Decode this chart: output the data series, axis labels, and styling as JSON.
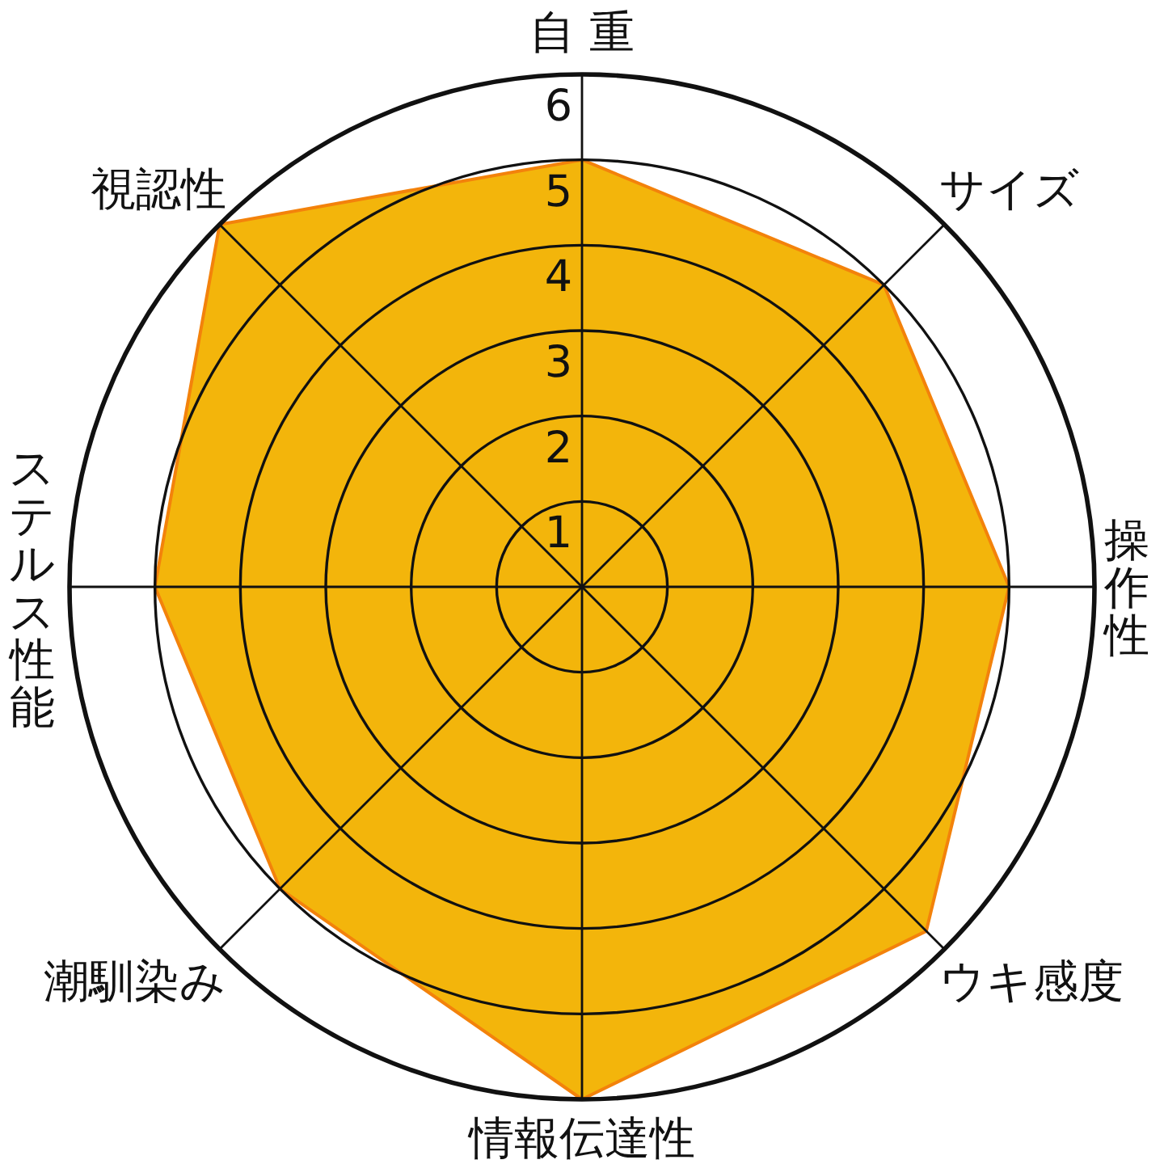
{
  "chart_data": {
    "type": "radar",
    "categories": [
      "自 重",
      "サイズ",
      "操作性",
      "ウキ感度",
      "情報伝達性",
      "潮馴染み",
      "ステルス性能",
      "視認性"
    ],
    "series": [
      {
        "color": "#f3b50b",
        "values": [
          5,
          5,
          5,
          5.7,
          6,
          5,
          5,
          6
        ]
      }
    ],
    "ylim": [
      0,
      6
    ],
    "yticks": [
      1,
      2,
      3,
      4,
      5,
      6
    ],
    "grid": true
  }
}
